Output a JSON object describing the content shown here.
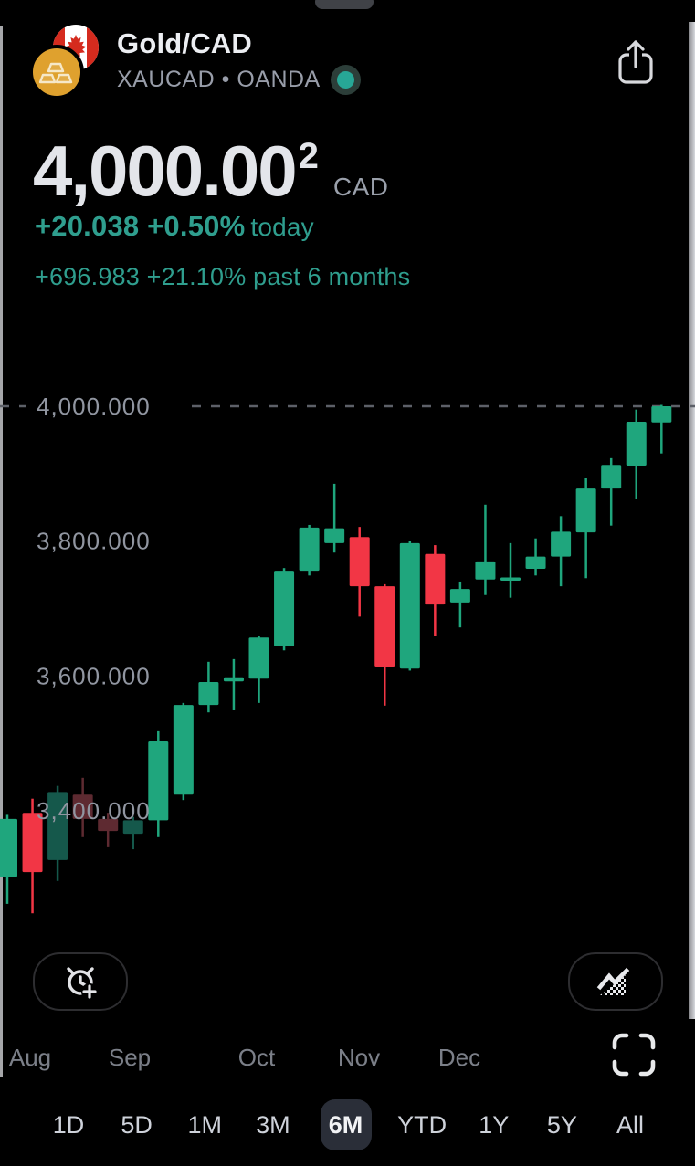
{
  "header": {
    "title": "Gold/CAD",
    "subtitle": "XAUCAD • OANDA",
    "market_status": "open",
    "status_dot_color": "#27a796"
  },
  "quote": {
    "price": "4,000.00",
    "price_sup": "2",
    "currency": "CAD",
    "change_today_value": "+20.038 +0.50%",
    "change_today_label": "today",
    "change_period_value": "+696.983 +21.10%",
    "change_period_label": "past 6 months"
  },
  "chart_data": {
    "type": "candlestick",
    "timeframe": "weekly",
    "ylim": [
      3230,
      4030
    ],
    "grid": "single dashed line at 4000",
    "legend_position": "none",
    "y_axis_labels": [
      {
        "label": "4,000.000",
        "value": 4000,
        "dashed_line": true
      },
      {
        "label": "3,800.000",
        "value": 3800,
        "dashed_line": false
      },
      {
        "label": "3,600.000",
        "value": 3600,
        "dashed_line": false
      },
      {
        "label": "3,400.000",
        "value": 3400,
        "dashed_line": false
      }
    ],
    "x_axis_labels": [
      "Aug",
      "Sep",
      "Oct",
      "Nov",
      "Dec"
    ],
    "colors": {
      "up": "#1fa67d",
      "down": "#f23645",
      "up_dim": "#15584b",
      "down_dim": "#5e2a31",
      "dashed_line": "#5d6068",
      "y_label": "#9196a1"
    },
    "dim_indexes": [
      2,
      3,
      4,
      5
    ],
    "candles_ohlc": [
      [
        3302,
        3394,
        3262,
        3388
      ],
      [
        3397,
        3418,
        3248,
        3309
      ],
      [
        3327,
        3437,
        3296,
        3428
      ],
      [
        3424,
        3449,
        3361,
        3388
      ],
      [
        3388,
        3397,
        3346,
        3370
      ],
      [
        3366,
        3391,
        3343,
        3386
      ],
      [
        3386,
        3518,
        3361,
        3503
      ],
      [
        3424,
        3560,
        3416,
        3557
      ],
      [
        3557,
        3621,
        3546,
        3591
      ],
      [
        3592,
        3625,
        3549,
        3598
      ],
      [
        3596,
        3660,
        3560,
        3657
      ],
      [
        3644,
        3760,
        3638,
        3756
      ],
      [
        3756,
        3824,
        3749,
        3820
      ],
      [
        3797,
        3885,
        3783,
        3819
      ],
      [
        3806,
        3821,
        3688,
        3733
      ],
      [
        3733,
        3736,
        3556,
        3614
      ],
      [
        3611,
        3800,
        3608,
        3797
      ],
      [
        3781,
        3794,
        3659,
        3706
      ],
      [
        3709,
        3740,
        3672,
        3729
      ],
      [
        3743,
        3854,
        3720,
        3770
      ],
      [
        3742,
        3797,
        3716,
        3746
      ],
      [
        3759,
        3804,
        3749,
        3777
      ],
      [
        3777,
        3837,
        3733,
        3814
      ],
      [
        3813,
        3894,
        3745,
        3878
      ],
      [
        3878,
        3923,
        3823,
        3913
      ],
      [
        3912,
        3995,
        3862,
        3977
      ],
      [
        3976,
        4002,
        3930,
        4000
      ]
    ]
  },
  "controls": {
    "alert_button": "add-alert",
    "chart_type_button": "area-chart-style",
    "fullscreen_button": "fullscreen"
  },
  "tabs": {
    "items": [
      "1D",
      "5D",
      "1M",
      "3M",
      "6M",
      "YTD",
      "1Y",
      "5Y",
      "All"
    ],
    "selected": "6M"
  }
}
